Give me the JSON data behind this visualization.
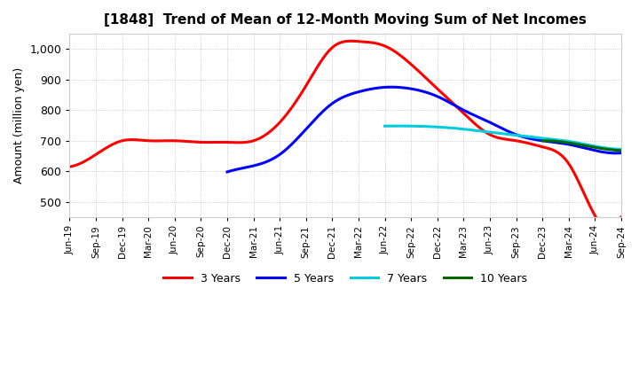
{
  "title": "[1848]  Trend of Mean of 12-Month Moving Sum of Net Incomes",
  "ylabel": "Amount (million yen)",
  "background_color": "#ffffff",
  "grid_color": "#999999",
  "ylim": [
    450,
    1050
  ],
  "yticks": [
    500,
    600,
    700,
    800,
    900,
    1000
  ],
  "ytick_labels": [
    "500",
    "600",
    "700",
    "800",
    "900",
    "1,000"
  ],
  "x_labels": [
    "Jun-19",
    "Sep-19",
    "Dec-19",
    "Mar-20",
    "Jun-20",
    "Sep-20",
    "Dec-20",
    "Mar-21",
    "Jun-21",
    "Sep-21",
    "Dec-21",
    "Mar-22",
    "Jun-22",
    "Sep-22",
    "Dec-22",
    "Mar-23",
    "Jun-23",
    "Sep-23",
    "Dec-23",
    "Mar-24",
    "Jun-24",
    "Sep-24"
  ],
  "series": {
    "3 Years": {
      "color": "#ff0000",
      "data": [
        615,
        655,
        700,
        700,
        700,
        695,
        695,
        700,
        760,
        880,
        1005,
        1025,
        1010,
        950,
        870,
        790,
        720,
        700,
        680,
        625,
        455,
        450
      ]
    },
    "5 Years": {
      "color": "#0000ff",
      "data": [
        null,
        null,
        null,
        null,
        null,
        null,
        598,
        618,
        655,
        738,
        822,
        860,
        875,
        870,
        845,
        800,
        760,
        720,
        700,
        688,
        668,
        660
      ]
    },
    "7 Years": {
      "color": "#00ccdd",
      "data": [
        null,
        null,
        null,
        null,
        null,
        null,
        null,
        null,
        null,
        null,
        null,
        null,
        748,
        748,
        745,
        738,
        728,
        718,
        708,
        698,
        682,
        672
      ]
    },
    "10 Years": {
      "color": "#006600",
      "data": [
        null,
        null,
        null,
        null,
        null,
        null,
        null,
        null,
        null,
        null,
        null,
        null,
        null,
        null,
        null,
        null,
        null,
        null,
        700,
        693,
        678,
        668
      ]
    }
  },
  "legend_order": [
    "3 Years",
    "5 Years",
    "7 Years",
    "10 Years"
  ]
}
